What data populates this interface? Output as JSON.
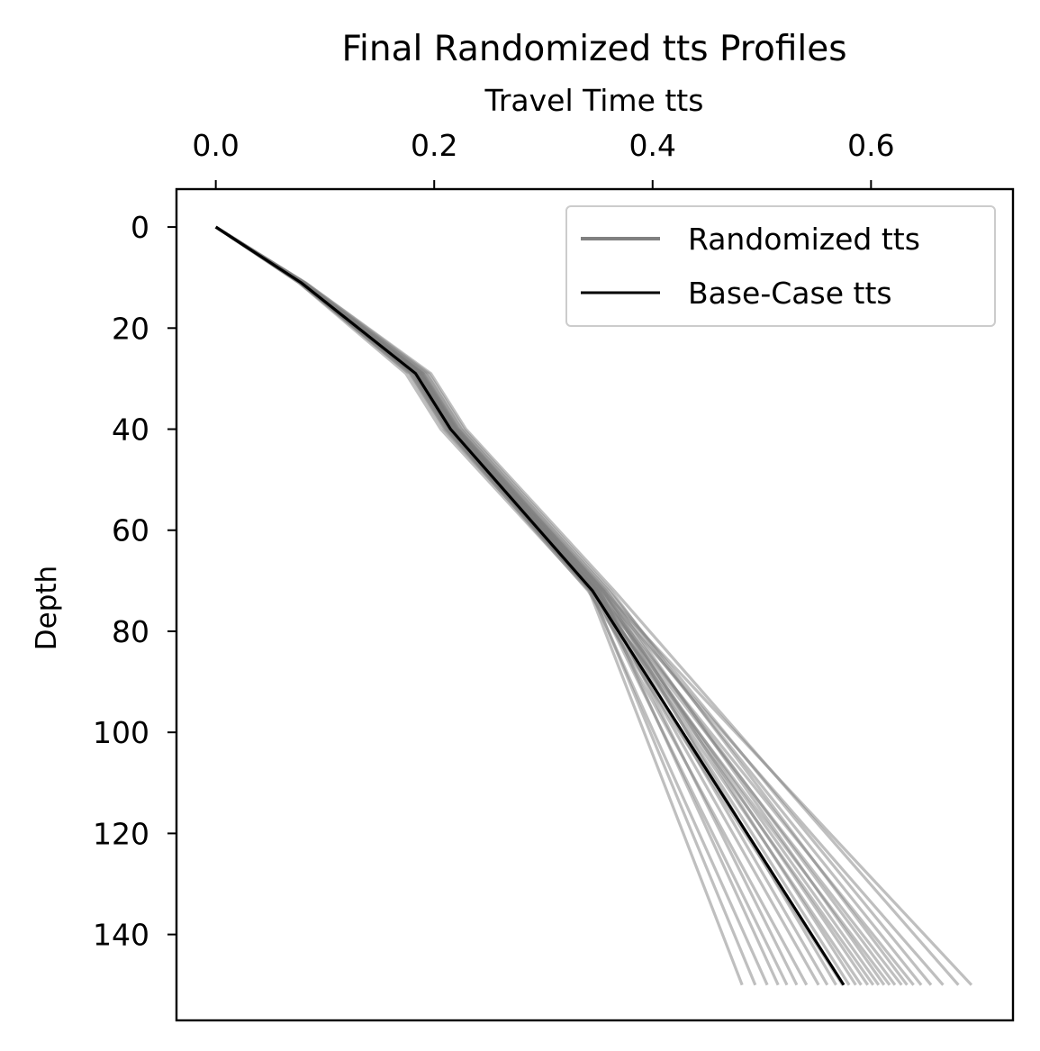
{
  "chart_data": {
    "type": "line",
    "title": "Final Randomized tts Profiles",
    "xlabel": "Travel Time tts",
    "ylabel": "Depth",
    "xlim": [
      -0.036,
      0.73
    ],
    "ylim": [
      157,
      -7.5
    ],
    "x_axis_position": "top",
    "y_inverted": true,
    "grid": false,
    "legend_position": "top-right",
    "x_ticks": [
      0.0,
      0.2,
      0.4,
      0.6
    ],
    "x_tick_labels": [
      "0.0",
      "0.2",
      "0.4",
      "0.6"
    ],
    "y_ticks": [
      0,
      20,
      40,
      60,
      80,
      100,
      120,
      140
    ],
    "y_tick_labels": [
      "0",
      "20",
      "40",
      "60",
      "80",
      "100",
      "120",
      "140"
    ],
    "depths": [
      0,
      11,
      29,
      40,
      72,
      150
    ],
    "legend": [
      {
        "label": "Randomized tts",
        "color": "#808080"
      },
      {
        "label": "Base-Case tts",
        "color": "#000000"
      }
    ],
    "series": [
      {
        "name": "Base-Case tts",
        "color": "#000000",
        "x": [
          0.0,
          0.078,
          0.183,
          0.215,
          0.345,
          0.575
        ],
        "y": [
          0,
          11,
          29,
          40,
          72,
          150
        ]
      },
      {
        "name": "Randomized tts",
        "color": "#808080",
        "alpha": 0.5,
        "profiles": [
          [
            0.0,
            0.076,
            0.174,
            0.206,
            0.342,
            0.482
          ],
          [
            0.0,
            0.077,
            0.177,
            0.209,
            0.344,
            0.494
          ],
          [
            0.0,
            0.078,
            0.18,
            0.212,
            0.343,
            0.505
          ],
          [
            0.0,
            0.079,
            0.185,
            0.217,
            0.35,
            0.515
          ],
          [
            0.0,
            0.078,
            0.178,
            0.21,
            0.346,
            0.523
          ],
          [
            0.0,
            0.08,
            0.188,
            0.22,
            0.352,
            0.532
          ],
          [
            0.0,
            0.077,
            0.181,
            0.213,
            0.345,
            0.541
          ],
          [
            0.0,
            0.079,
            0.183,
            0.215,
            0.348,
            0.552
          ],
          [
            0.0,
            0.078,
            0.186,
            0.219,
            0.351,
            0.56
          ],
          [
            0.0,
            0.08,
            0.19,
            0.222,
            0.355,
            0.568
          ],
          [
            0.0,
            0.076,
            0.179,
            0.211,
            0.341,
            0.574
          ],
          [
            0.0,
            0.079,
            0.184,
            0.216,
            0.349,
            0.58
          ],
          [
            0.0,
            0.081,
            0.189,
            0.221,
            0.356,
            0.586
          ],
          [
            0.0,
            0.078,
            0.182,
            0.214,
            0.347,
            0.591
          ],
          [
            0.0,
            0.08,
            0.187,
            0.219,
            0.353,
            0.597
          ],
          [
            0.0,
            0.077,
            0.183,
            0.216,
            0.346,
            0.602
          ],
          [
            0.0,
            0.079,
            0.186,
            0.218,
            0.35,
            0.607
          ],
          [
            0.0,
            0.081,
            0.192,
            0.224,
            0.358,
            0.612
          ],
          [
            0.0,
            0.078,
            0.181,
            0.213,
            0.344,
            0.617
          ],
          [
            0.0,
            0.08,
            0.188,
            0.22,
            0.354,
            0.622
          ],
          [
            0.0,
            0.079,
            0.185,
            0.217,
            0.348,
            0.628
          ],
          [
            0.0,
            0.082,
            0.195,
            0.227,
            0.362,
            0.633
          ],
          [
            0.0,
            0.078,
            0.184,
            0.216,
            0.349,
            0.639
          ],
          [
            0.0,
            0.08,
            0.19,
            0.222,
            0.357,
            0.646
          ],
          [
            0.0,
            0.081,
            0.193,
            0.225,
            0.36,
            0.655
          ],
          [
            0.0,
            0.079,
            0.187,
            0.219,
            0.352,
            0.666
          ],
          [
            0.0,
            0.082,
            0.197,
            0.229,
            0.365,
            0.68
          ],
          [
            0.0,
            0.08,
            0.189,
            0.221,
            0.355,
            0.692
          ]
        ]
      }
    ]
  }
}
